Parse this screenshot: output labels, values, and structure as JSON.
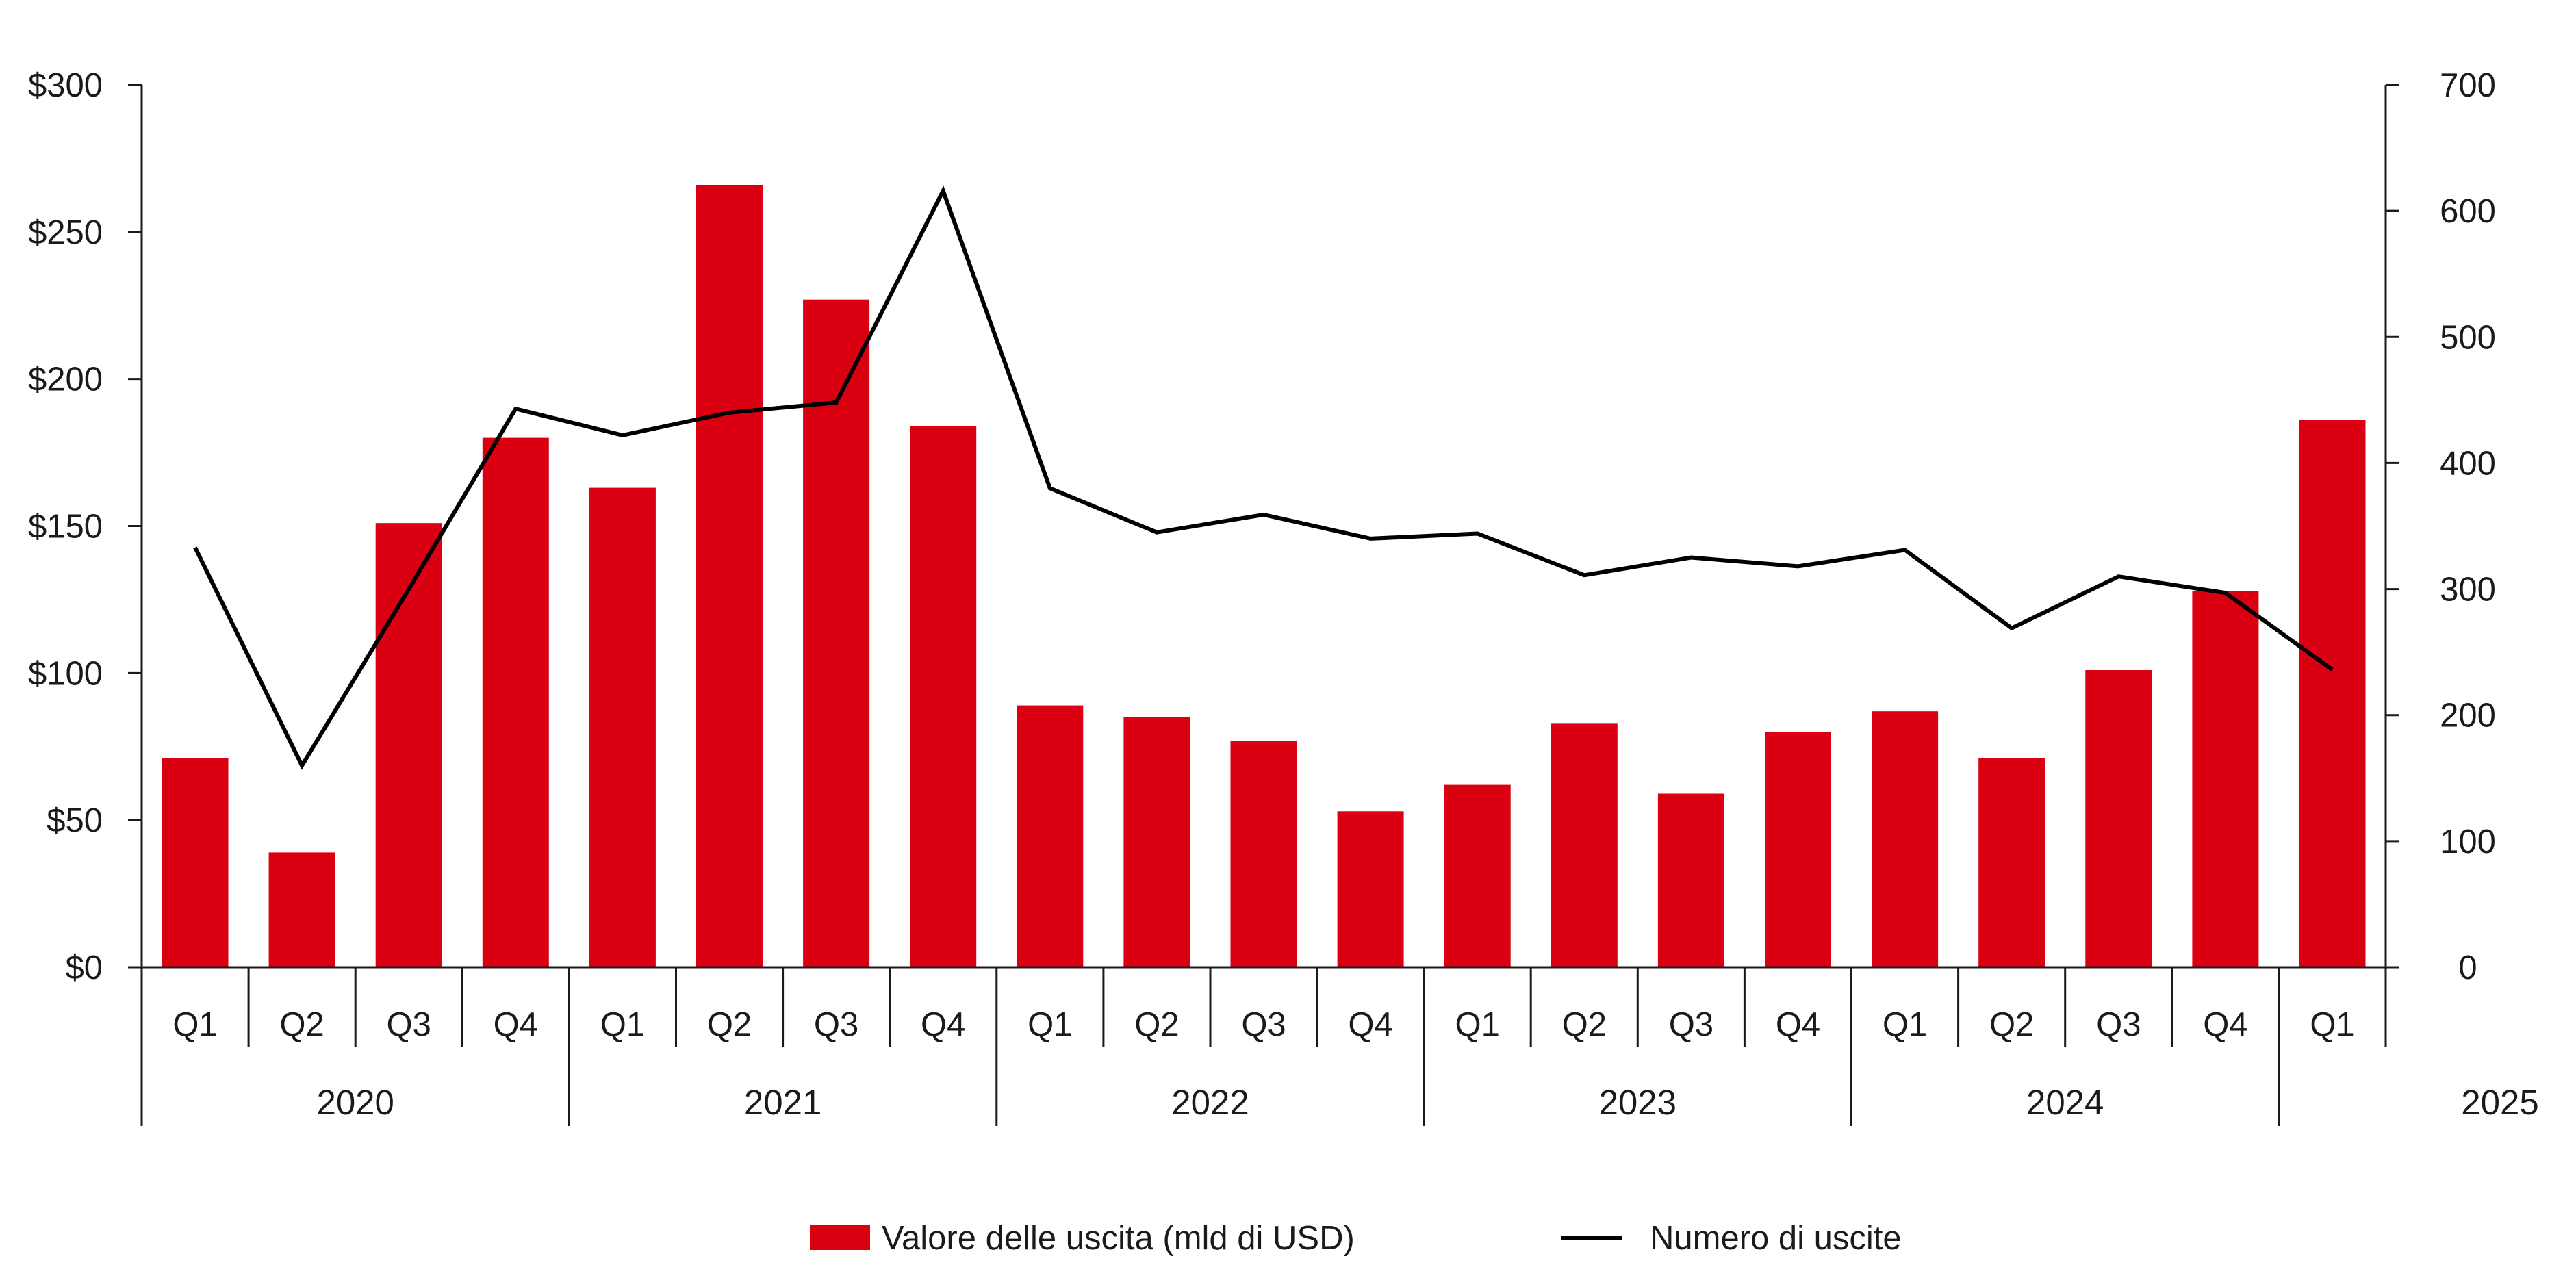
{
  "chart_data": {
    "type": "bar",
    "title": "",
    "xlabel": "",
    "ylabel": "",
    "categories": [
      "Q1",
      "Q2",
      "Q3",
      "Q4",
      "Q1",
      "Q2",
      "Q3",
      "Q4",
      "Q1",
      "Q2",
      "Q3",
      "Q4",
      "Q1",
      "Q2",
      "Q3",
      "Q4",
      "Q1",
      "Q2",
      "Q3",
      "Q4",
      "Q1"
    ],
    "years": [
      {
        "label": "2020",
        "start": 0,
        "end": 3
      },
      {
        "label": "2021",
        "start": 4,
        "end": 7
      },
      {
        "label": "2022",
        "start": 8,
        "end": 11
      },
      {
        "label": "2023",
        "start": 12,
        "end": 15
      },
      {
        "label": "2024",
        "start": 16,
        "end": 19
      },
      {
        "label": "2025",
        "start": 20,
        "end": 20
      }
    ],
    "series": [
      {
        "name": "Valore delle uscita (mld di USD)",
        "type": "bar",
        "axis": "left",
        "color": "#da0012",
        "values": [
          71,
          39,
          151,
          180,
          163,
          266,
          227,
          184,
          89,
          85,
          77,
          53,
          62,
          83,
          59,
          80,
          87,
          71,
          101,
          128,
          186
        ]
      },
      {
        "name": "Numero di uscite",
        "type": "line",
        "axis": "right",
        "color": "#000000",
        "values": [
          333,
          160,
          300,
          443,
          422,
          440,
          448,
          616,
          380,
          345,
          359,
          340,
          344,
          311,
          325,
          318,
          331,
          269,
          310,
          297,
          236
        ]
      }
    ],
    "y_left": {
      "ylim": [
        0,
        300
      ],
      "ticks": [
        0,
        50,
        100,
        150,
        200,
        250,
        300
      ],
      "tick_labels": [
        "$0",
        "$50",
        "$100",
        "$150",
        "$200",
        "$250",
        "$300"
      ]
    },
    "y_right": {
      "ylim": [
        0,
        700
      ],
      "ticks": [
        0,
        100,
        200,
        300,
        400,
        500,
        600,
        700
      ],
      "tick_labels": [
        "0",
        "100",
        "200",
        "300",
        "400",
        "500",
        "600",
        "700"
      ]
    },
    "grid": false,
    "legend": {
      "position": "bottom"
    }
  }
}
